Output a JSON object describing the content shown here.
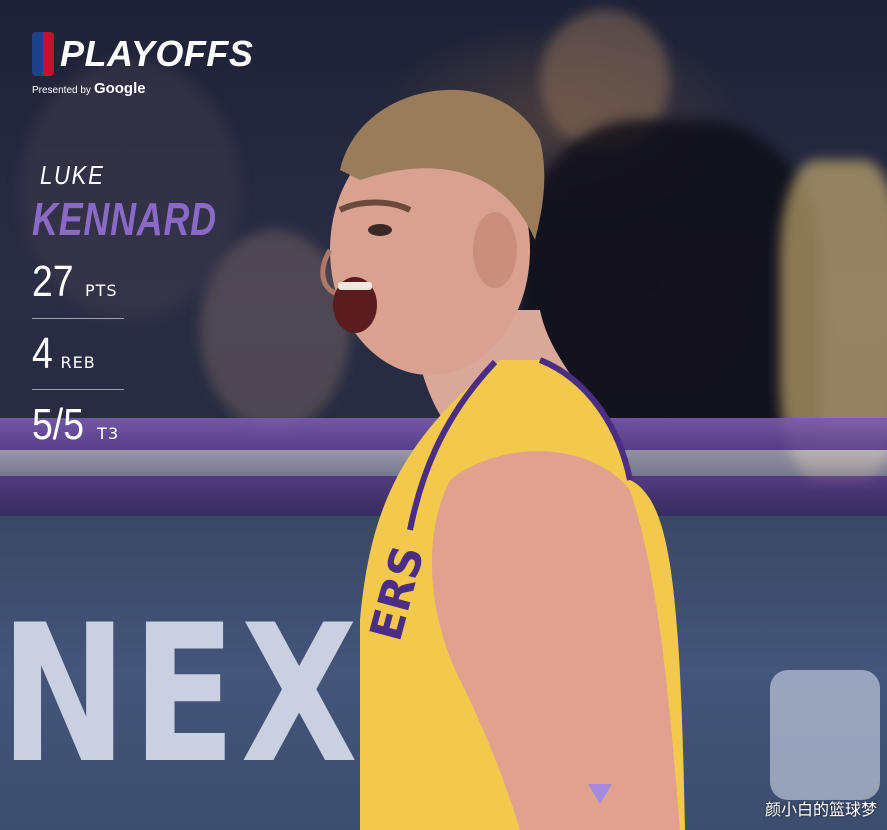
{
  "branding": {
    "title": "PLAYOFFS",
    "presented_by": "Presented by",
    "sponsor": "Google"
  },
  "player": {
    "first_name": "LUKE",
    "last_name": "KENNARD",
    "jersey_letters": "ERS"
  },
  "stats": [
    {
      "value": "27",
      "label": "PTS"
    },
    {
      "value": "4",
      "label": "REB"
    },
    {
      "value": "5/5",
      "label": "T3"
    }
  ],
  "background": {
    "ad_text": "NEXT"
  },
  "watermark": "颜小白的篮球梦",
  "colors": {
    "accent_purple": "#8a6ac7",
    "jersey_gold": "#f2c94c",
    "arrow": "#a58ae0"
  }
}
